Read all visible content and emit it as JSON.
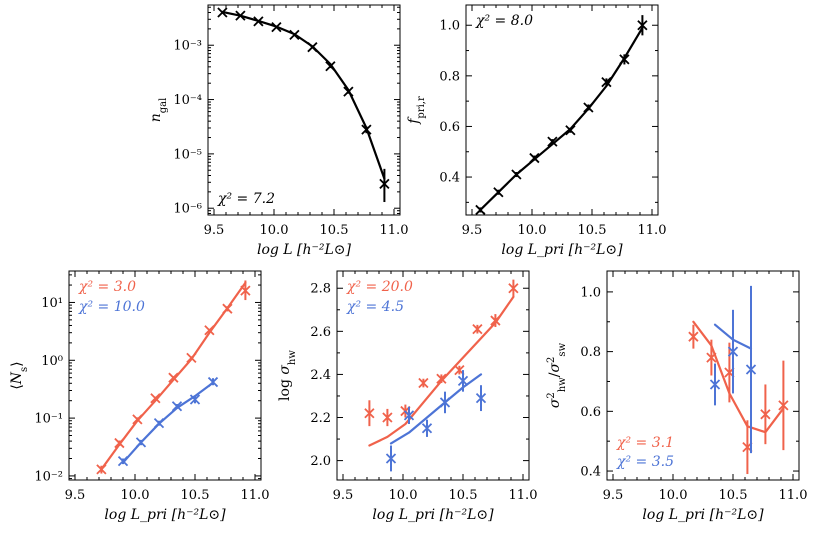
{
  "colors": {
    "black": "#000000",
    "red": "#f0624b",
    "blue": "#4d74d6"
  },
  "chart_data": [
    {
      "id": "ngal",
      "type": "line",
      "yscale": "log",
      "xlim": [
        9.45,
        11.05
      ],
      "ylim": [
        7.5e-07,
        0.0055
      ],
      "xticks": [
        9.5,
        10.0,
        10.5,
        11.0
      ],
      "xtick_labels": [
        "9.5",
        "10.0",
        "10.5",
        "11.0"
      ],
      "yticks": [
        1e-06,
        1e-05,
        0.0001,
        0.001
      ],
      "ytick_labels": [
        "10⁻⁶",
        "10⁻⁵",
        "10⁻⁴",
        "10⁻³"
      ],
      "xlabel": "log  L [h⁻²L⊙]",
      "ylabel": "n_gal",
      "series": [
        {
          "name": "model",
          "color": "#000000",
          "x": [
            9.57,
            9.72,
            9.87,
            10.02,
            10.17,
            10.32,
            10.47,
            10.62,
            10.77,
            10.92
          ],
          "y": [
            0.0041,
            0.0035,
            0.0028,
            0.0022,
            0.0016,
            0.00095,
            0.00045,
            0.00015,
            3e-05,
            3.5e-06
          ],
          "data_y": [
            0.004,
            0.0035,
            0.00275,
            0.00215,
            0.00155,
            0.00092,
            0.00041,
            0.00014,
            2.8e-05,
            2.8e-06
          ],
          "data_err_lo": [
            0.0002,
            0.00015,
            0.00012,
            0.0001,
            8e-05,
            5e-05,
            3e-05,
            1.2e-05,
            4e-06,
            1.5e-06
          ],
          "data_err_hi": [
            0.0002,
            0.00015,
            0.00012,
            0.0001,
            8e-05,
            5e-05,
            3e-05,
            1.2e-05,
            4e-06,
            2.5e-06
          ]
        }
      ],
      "chi2": [
        {
          "text": "χ² = 7.2",
          "color": "#000000"
        }
      ]
    },
    {
      "id": "fpri",
      "type": "line",
      "yscale": "linear",
      "xlim": [
        9.45,
        11.05
      ],
      "ylim": [
        0.25,
        1.08
      ],
      "xticks": [
        9.5,
        10.0,
        10.5,
        11.0
      ],
      "xtick_labels": [
        "9.5",
        "10.0",
        "10.5",
        "11.0"
      ],
      "yticks": [
        0.4,
        0.6,
        0.8,
        1.0
      ],
      "ytick_labels": [
        "0.4",
        "0.6",
        "0.8",
        "1.0"
      ],
      "xlabel": "log  L_pri [h⁻²L⊙]",
      "ylabel": "f_pri,r",
      "series": [
        {
          "name": "model",
          "color": "#000000",
          "x": [
            9.57,
            9.72,
            9.87,
            10.02,
            10.17,
            10.32,
            10.47,
            10.62,
            10.77,
            10.92
          ],
          "y": [
            0.27,
            0.34,
            0.41,
            0.47,
            0.53,
            0.59,
            0.67,
            0.76,
            0.87,
            0.99
          ],
          "data_y": [
            0.27,
            0.34,
            0.41,
            0.475,
            0.54,
            0.585,
            0.675,
            0.775,
            0.865,
            1.0
          ],
          "data_err_lo": [
            0.01,
            0.01,
            0.01,
            0.01,
            0.01,
            0.01,
            0.012,
            0.015,
            0.02,
            0.04
          ],
          "data_err_hi": [
            0.01,
            0.01,
            0.01,
            0.01,
            0.01,
            0.01,
            0.012,
            0.015,
            0.02,
            0.04
          ]
        }
      ],
      "chi2": [
        {
          "text": "χ² = 8.0",
          "color": "#000000"
        }
      ]
    },
    {
      "id": "ns",
      "type": "line",
      "yscale": "log",
      "xlim": [
        9.45,
        11.05
      ],
      "ylim": [
        0.0085,
        35
      ],
      "xticks": [
        9.5,
        10.0,
        10.5,
        11.0
      ],
      "xtick_labels": [
        "9.5",
        "10.0",
        "10.5",
        "11.0"
      ],
      "yticks": [
        0.01,
        0.1,
        1,
        10
      ],
      "ytick_labels": [
        "10⁻²",
        "10⁻¹",
        "10⁰",
        "10¹"
      ],
      "xlabel": "log  L_pri [h⁻²L⊙]",
      "ylabel": "⟨N_s⟩",
      "series": [
        {
          "name": "red",
          "color": "#f0624b",
          "x": [
            9.72,
            9.87,
            10.02,
            10.17,
            10.32,
            10.47,
            10.62,
            10.77,
            10.92
          ],
          "y": [
            0.013,
            0.035,
            0.09,
            0.2,
            0.46,
            1.05,
            3.0,
            8.0,
            22.0
          ],
          "data_y": [
            0.013,
            0.037,
            0.095,
            0.22,
            0.5,
            1.1,
            3.3,
            7.8,
            16.0
          ],
          "data_err_lo": [
            0.002,
            0.004,
            0.008,
            0.015,
            0.03,
            0.07,
            0.2,
            0.8,
            5.0
          ],
          "data_err_hi": [
            0.002,
            0.004,
            0.008,
            0.015,
            0.03,
            0.07,
            0.2,
            0.8,
            8.0
          ]
        },
        {
          "name": "blue",
          "color": "#4d74d6",
          "x": [
            9.9,
            10.05,
            10.2,
            10.35,
            10.5,
            10.65
          ],
          "y": [
            0.017,
            0.038,
            0.08,
            0.15,
            0.24,
            0.41
          ],
          "data_y": [
            0.018,
            0.038,
            0.082,
            0.16,
            0.21,
            0.42
          ],
          "data_err_lo": [
            0.002,
            0.004,
            0.008,
            0.015,
            0.03,
            0.05
          ],
          "data_err_hi": [
            0.002,
            0.004,
            0.008,
            0.015,
            0.03,
            0.07
          ]
        }
      ],
      "chi2": [
        {
          "text": "χ² = 3.0",
          "color": "#f0624b"
        },
        {
          "text": "χ² = 10.0",
          "color": "#4d74d6"
        }
      ]
    },
    {
      "id": "sigma_hw",
      "type": "line",
      "yscale": "linear",
      "xlim": [
        9.45,
        11.05
      ],
      "ylim": [
        1.91,
        2.88
      ],
      "xticks": [
        9.5,
        10.0,
        10.5,
        11.0
      ],
      "xtick_labels": [
        "9.5",
        "10.0",
        "10.5",
        "11.0"
      ],
      "yticks": [
        2.0,
        2.2,
        2.4,
        2.6,
        2.8
      ],
      "ytick_labels": [
        "2.0",
        "2.2",
        "2.4",
        "2.6",
        "2.8"
      ],
      "xlabel": "log  L_pri [h⁻²L⊙]",
      "ylabel": "log σ_hw",
      "series": [
        {
          "name": "red",
          "color": "#f0624b",
          "x": [
            9.72,
            9.87,
            10.02,
            10.17,
            10.32,
            10.47,
            10.62,
            10.77,
            10.92
          ],
          "y": [
            2.07,
            2.11,
            2.17,
            2.27,
            2.37,
            2.46,
            2.55,
            2.64,
            2.76
          ],
          "data_y": [
            2.22,
            2.2,
            2.23,
            2.36,
            2.38,
            2.42,
            2.61,
            2.65,
            2.8
          ],
          "data_err_lo": [
            0.06,
            0.04,
            0.03,
            0.02,
            0.02,
            0.02,
            0.02,
            0.03,
            0.04
          ],
          "data_err_hi": [
            0.06,
            0.04,
            0.03,
            0.02,
            0.02,
            0.02,
            0.02,
            0.03,
            0.04
          ]
        },
        {
          "name": "blue",
          "color": "#4d74d6",
          "x": [
            9.9,
            10.05,
            10.2,
            10.35,
            10.5,
            10.65
          ],
          "y": [
            2.08,
            2.13,
            2.2,
            2.27,
            2.34,
            2.4
          ],
          "data_y": [
            2.01,
            2.21,
            2.15,
            2.27,
            2.37,
            2.29
          ],
          "data_err_lo": [
            0.06,
            0.04,
            0.04,
            0.05,
            0.05,
            0.06
          ],
          "data_err_hi": [
            0.06,
            0.04,
            0.04,
            0.05,
            0.05,
            0.06
          ]
        }
      ],
      "chi2": [
        {
          "text": "χ² = 20.0",
          "color": "#f0624b"
        },
        {
          "text": "χ² = 4.5",
          "color": "#4d74d6"
        }
      ]
    },
    {
      "id": "sigma_ratio",
      "type": "line",
      "yscale": "linear",
      "xlim": [
        9.45,
        11.05
      ],
      "ylim": [
        0.37,
        1.07
      ],
      "xticks": [
        9.5,
        10.0,
        10.5,
        11.0
      ],
      "xtick_labels": [
        "9.5",
        "10.0",
        "10.5",
        "11.0"
      ],
      "yticks": [
        0.4,
        0.6,
        0.8,
        1.0
      ],
      "ytick_labels": [
        "0.4",
        "0.6",
        "0.8",
        "1.0"
      ],
      "xlabel": "log  L_pri [h⁻²L⊙]",
      "ylabel": "σ²_hw / σ²_sw",
      "series": [
        {
          "name": "red",
          "color": "#f0624b",
          "x": [
            10.17,
            10.32,
            10.47,
            10.62,
            10.77,
            10.92
          ],
          "y": [
            0.9,
            0.82,
            0.66,
            0.55,
            0.53,
            0.61
          ],
          "data_y": [
            0.85,
            0.78,
            0.73,
            0.48,
            0.59,
            0.62
          ],
          "data_err_lo": [
            0.04,
            0.06,
            0.1,
            0.09,
            0.1,
            0.15
          ],
          "data_err_hi": [
            0.04,
            0.06,
            0.1,
            0.09,
            0.1,
            0.15
          ]
        },
        {
          "name": "blue",
          "color": "#4d74d6",
          "x": [
            10.35,
            10.5,
            10.65
          ],
          "y": [
            0.89,
            0.84,
            0.81
          ],
          "data_y": [
            0.69,
            0.8,
            0.74
          ],
          "data_err_lo": [
            0.07,
            0.14,
            0.28
          ],
          "data_err_hi": [
            0.07,
            0.14,
            0.28
          ]
        }
      ],
      "chi2": [
        {
          "text": "χ² = 3.1",
          "color": "#f0624b"
        },
        {
          "text": "χ² = 3.5",
          "color": "#4d74d6"
        }
      ]
    }
  ]
}
